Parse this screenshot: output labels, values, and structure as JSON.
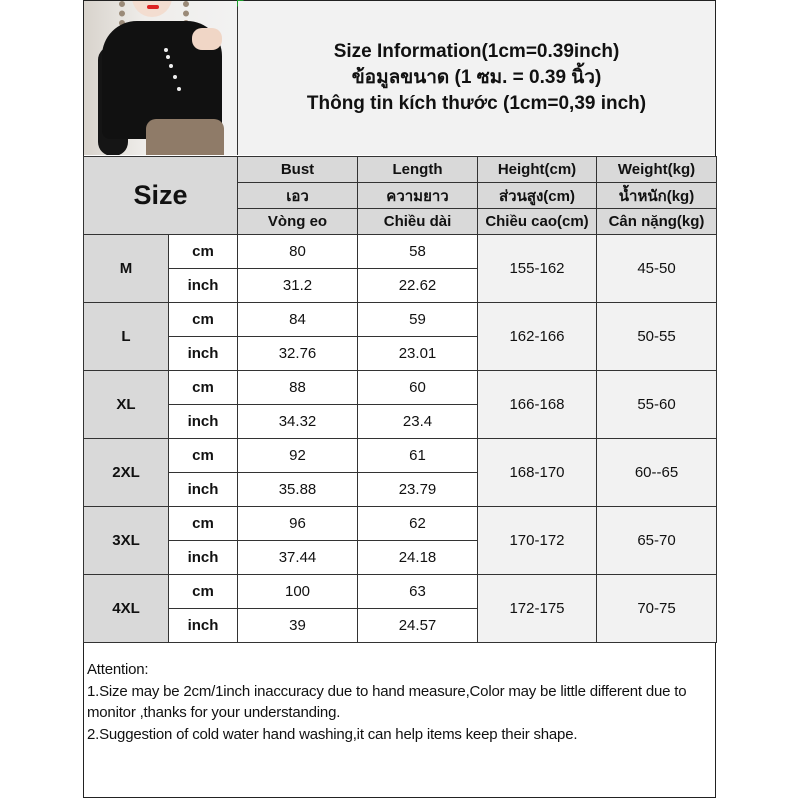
{
  "title": {
    "line1": "Size Information(1cm=0.39inch)",
    "line2": "ข้อมูลขนาด (1 ซม. = 0.39 นิ้ว)",
    "line3": "Thông tin kích thước (1cm=0,39 inch)"
  },
  "header": {
    "size_label": "Size",
    "columns": [
      {
        "en": "Bust",
        "th": "เอว",
        "vi": "Vòng eo"
      },
      {
        "en": "Length",
        "th": "ความยาว",
        "vi": "Chiều dài"
      },
      {
        "en": "Height(cm)",
        "th": "ส่วนสูง(cm)",
        "vi": "Chiều cao(cm)"
      },
      {
        "en": "Weight(kg)",
        "th": "น้ำหนัก(kg)",
        "vi": "Cân nặng(kg)"
      }
    ]
  },
  "units": {
    "cm": "cm",
    "inch": "inch"
  },
  "rows": [
    {
      "size": "M",
      "bust_cm": "80",
      "length_cm": "58",
      "bust_in": "31.2",
      "length_in": "22.62",
      "height": "155-162",
      "weight": "45-50"
    },
    {
      "size": "L",
      "bust_cm": "84",
      "length_cm": "59",
      "bust_in": "32.76",
      "length_in": "23.01",
      "height": "162-166",
      "weight": "50-55"
    },
    {
      "size": "XL",
      "bust_cm": "88",
      "length_cm": "60",
      "bust_in": "34.32",
      "length_in": "23.4",
      "height": "166-168",
      "weight": "55-60"
    },
    {
      "size": "2XL",
      "bust_cm": "92",
      "length_cm": "61",
      "bust_in": "35.88",
      "length_in": "23.79",
      "height": "168-170",
      "weight": "60--65"
    },
    {
      "size": "3XL",
      "bust_cm": "96",
      "length_cm": "62",
      "bust_in": "37.44",
      "length_in": "24.18",
      "height": "170-172",
      "weight": "65-70"
    },
    {
      "size": "4XL",
      "bust_cm": "100",
      "length_cm": "63",
      "bust_in": "39",
      "length_in": "24.57",
      "height": "172-175",
      "weight": "70-75"
    }
  ],
  "attention": {
    "heading": "Attention:",
    "note1": "1.Size may be 2cm/1inch inaccuracy due to hand measure,Color may be little different due to monitor ,thanks for your understanding.",
    "note2": "2.Suggestion of cold water hand washing,it can help items keep their shape."
  },
  "colors": {
    "header_bg": "#d9d9d9",
    "title_bg": "#f2f2f2",
    "border": "#333333"
  }
}
